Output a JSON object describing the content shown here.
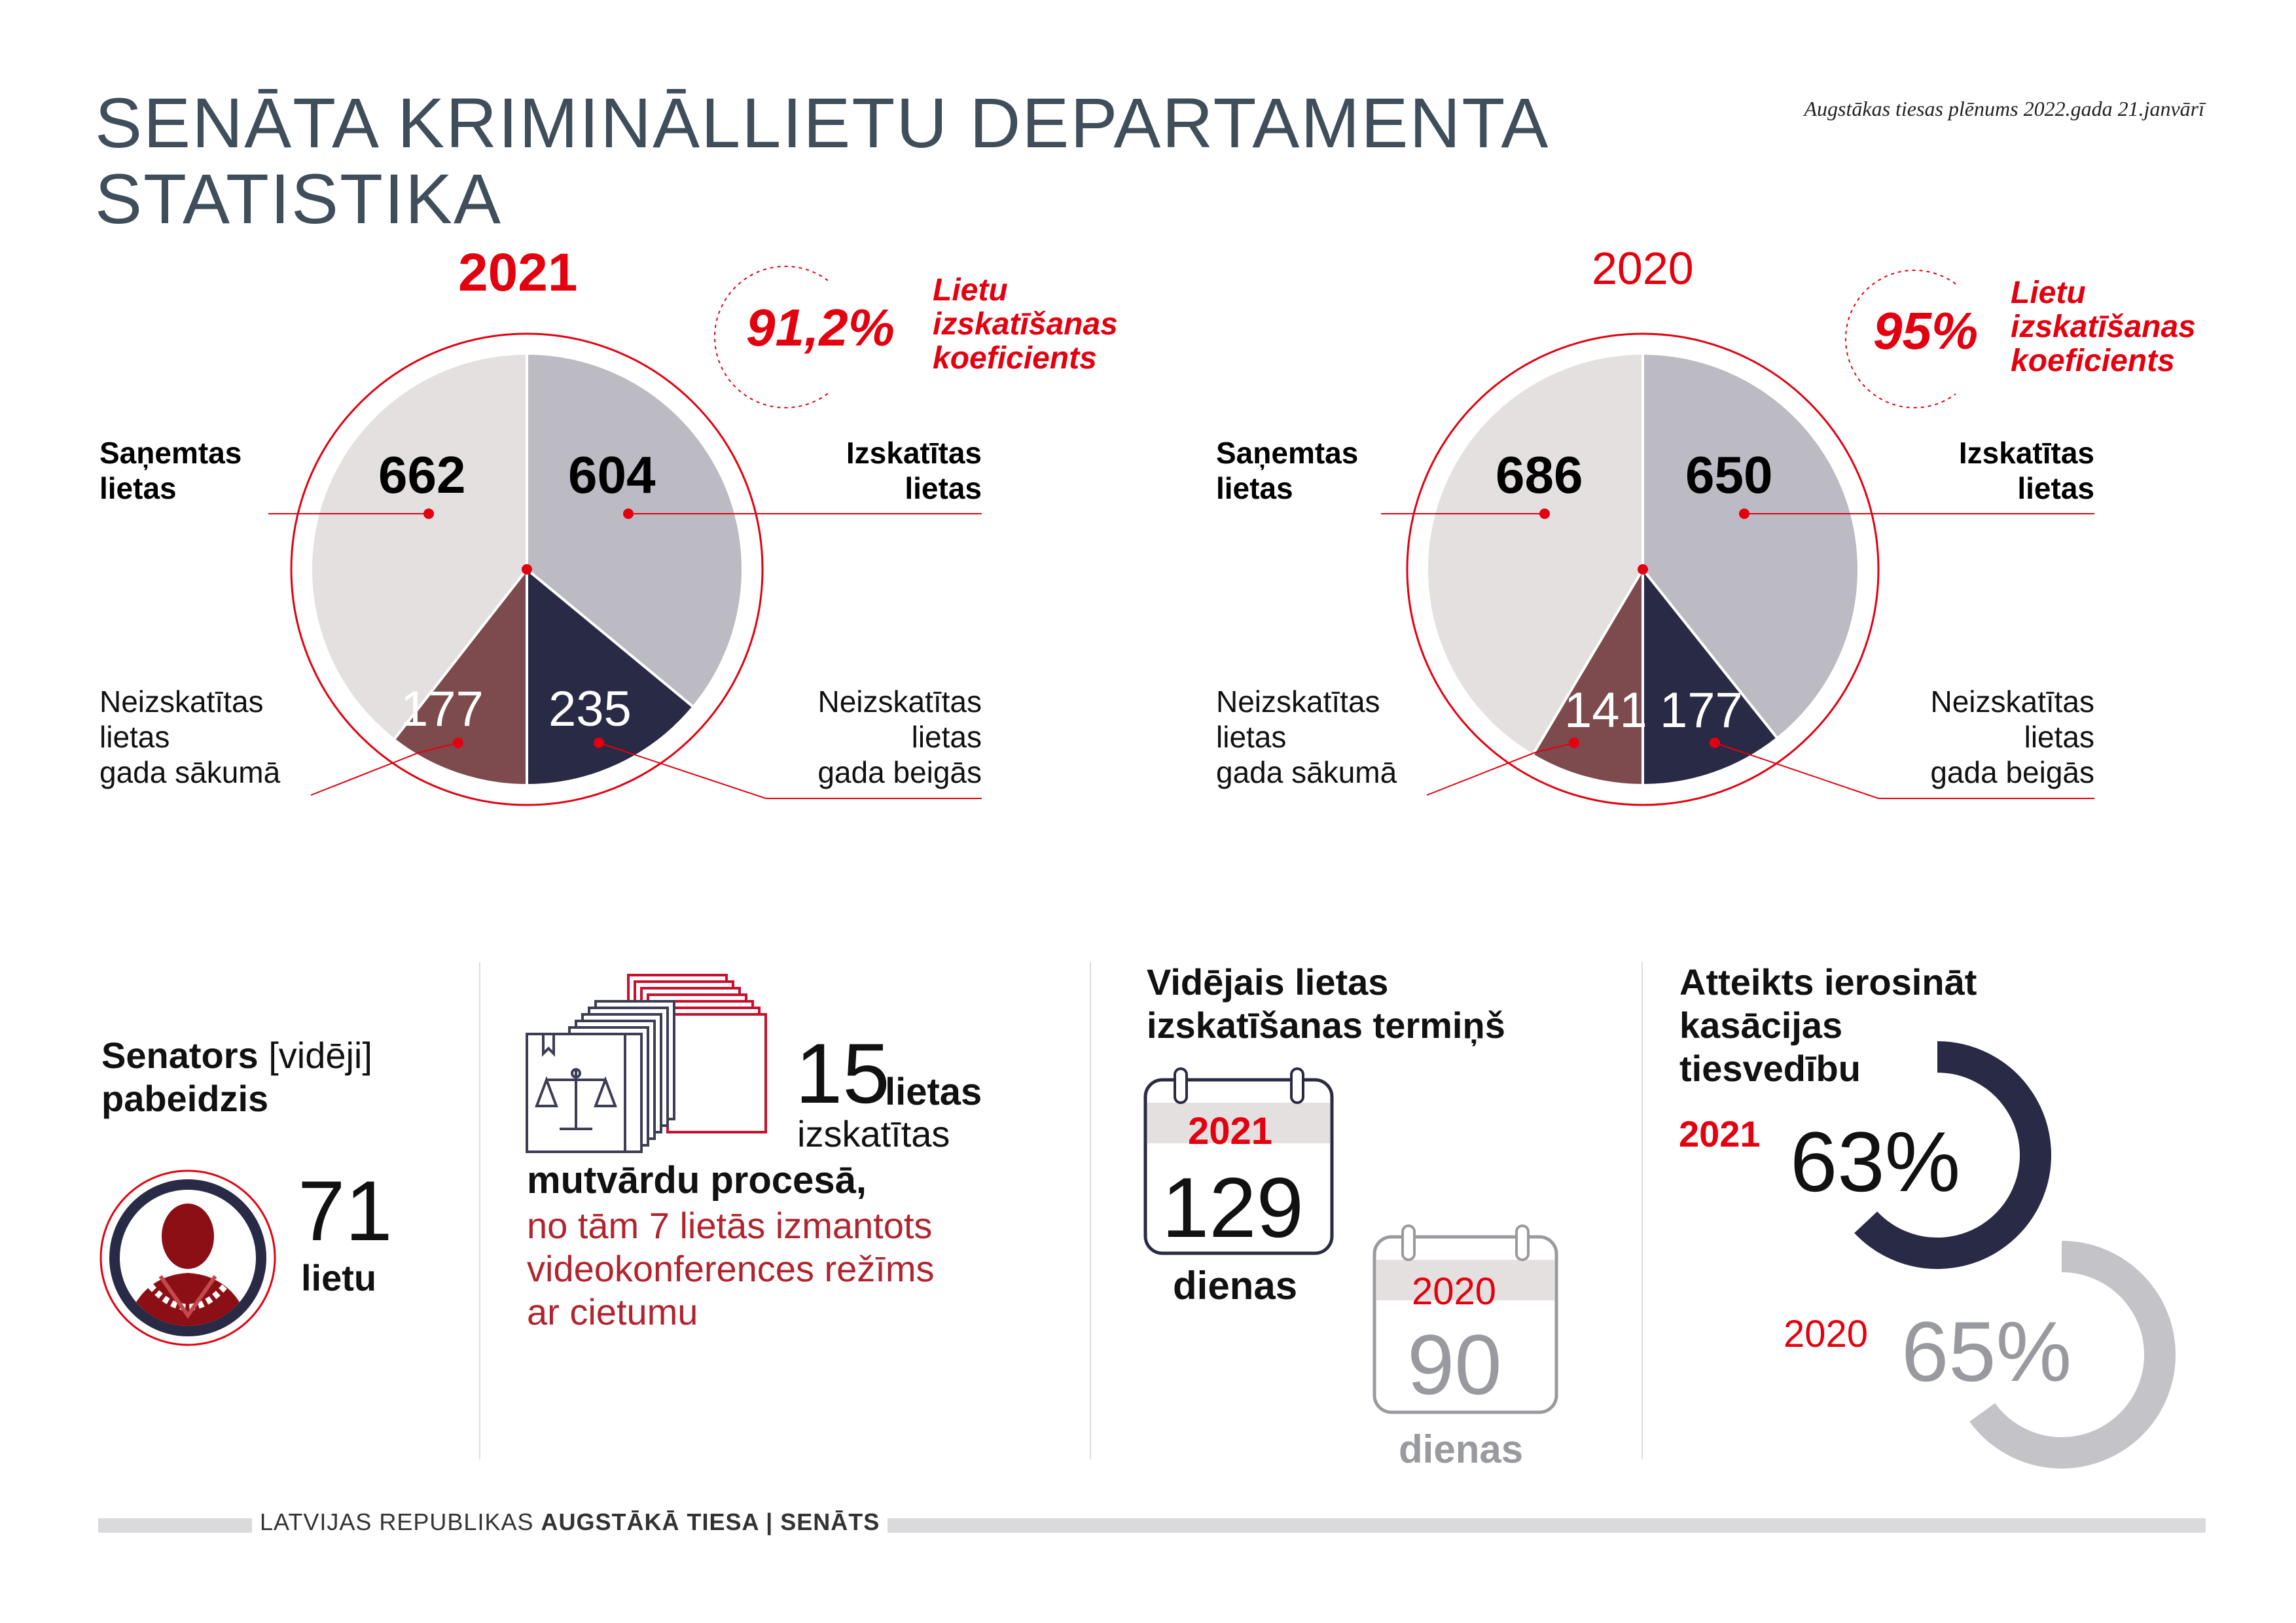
{
  "header": {
    "title_line1": "SENĀTA KRIMINĀLLIETU DEPARTAMENTA",
    "title_line2": "STATISTIKA",
    "subtitle": "Augstākas tiesas plēnums 2022.gada 21.janvārī"
  },
  "chart_data": [
    {
      "type": "pie",
      "year": "2021",
      "categories": [
        "Saņemtas lietas",
        "Izskatītas lietas",
        "Neizskatītas lietas gada beigās",
        "Neizskatītas lietas gada sākumā"
      ],
      "values": [
        662,
        604,
        235,
        177
      ],
      "colors": [
        "#e3e0df",
        "#bcbac2",
        "#292a45",
        "#7d4a4e"
      ],
      "coefficient": "91,2%",
      "coefficient_label": [
        "Lietu",
        "izskatīšanas",
        "koeficients"
      ]
    },
    {
      "type": "pie",
      "year": "2020",
      "categories": [
        "Saņemtas lietas",
        "Izskatītas lietas",
        "Neizskatītas lietas gada beigās",
        "Neizskatītas lietas gada sākumā"
      ],
      "values": [
        686,
        650,
        177,
        141
      ],
      "colors": [
        "#e3e0df",
        "#bcbac2",
        "#292a45",
        "#7d4a4e"
      ],
      "coefficient": "95%",
      "coefficient_label": [
        "Lietu",
        "izskatīšanas",
        "koeficients"
      ]
    },
    {
      "type": "donut",
      "title_lines": [
        "Atteikts ierosināt",
        "kasācijas",
        "tiesvedību"
      ],
      "series": [
        {
          "name": "2021",
          "value": 63,
          "label": "63%",
          "color": "#292a45"
        },
        {
          "name": "2020",
          "value": 65,
          "label": "65%",
          "color": "#c4c3c8"
        }
      ]
    }
  ],
  "labels": {
    "received": [
      "Saņemtas",
      "lietas"
    ],
    "examined": [
      "Izskatītas",
      "lietas"
    ],
    "open_start": [
      "Neizskatītas",
      "lietas",
      "gada sākumā"
    ],
    "open_end": [
      "Neizskatītas",
      "lietas",
      "gada beigās"
    ]
  },
  "senator": {
    "line1_bold": "Senators",
    "line1_plain": "[vidēji]",
    "line2": "pabeidzis",
    "value": "71",
    "unit": "lietu"
  },
  "oral": {
    "value": "15",
    "word1": "lietas",
    "word2": "izskatītas",
    "bold_line": "mutvārdu procesā,",
    "red_lines": [
      "no tām 7 lietās izmantots",
      "videokonferences režīms",
      "ar cietumu"
    ]
  },
  "duration": {
    "title_lines": [
      "Vidējais lietas",
      "izskatīšanas termiņš"
    ],
    "y2021": "2021",
    "v2021": "129",
    "y2020": "2020",
    "v2020": "90",
    "unit": "dienas"
  },
  "footer": {
    "plain": "LATVIJAS REPUBLIKAS ",
    "bold": "AUGSTĀKĀ TIESA | SENĀTS"
  }
}
